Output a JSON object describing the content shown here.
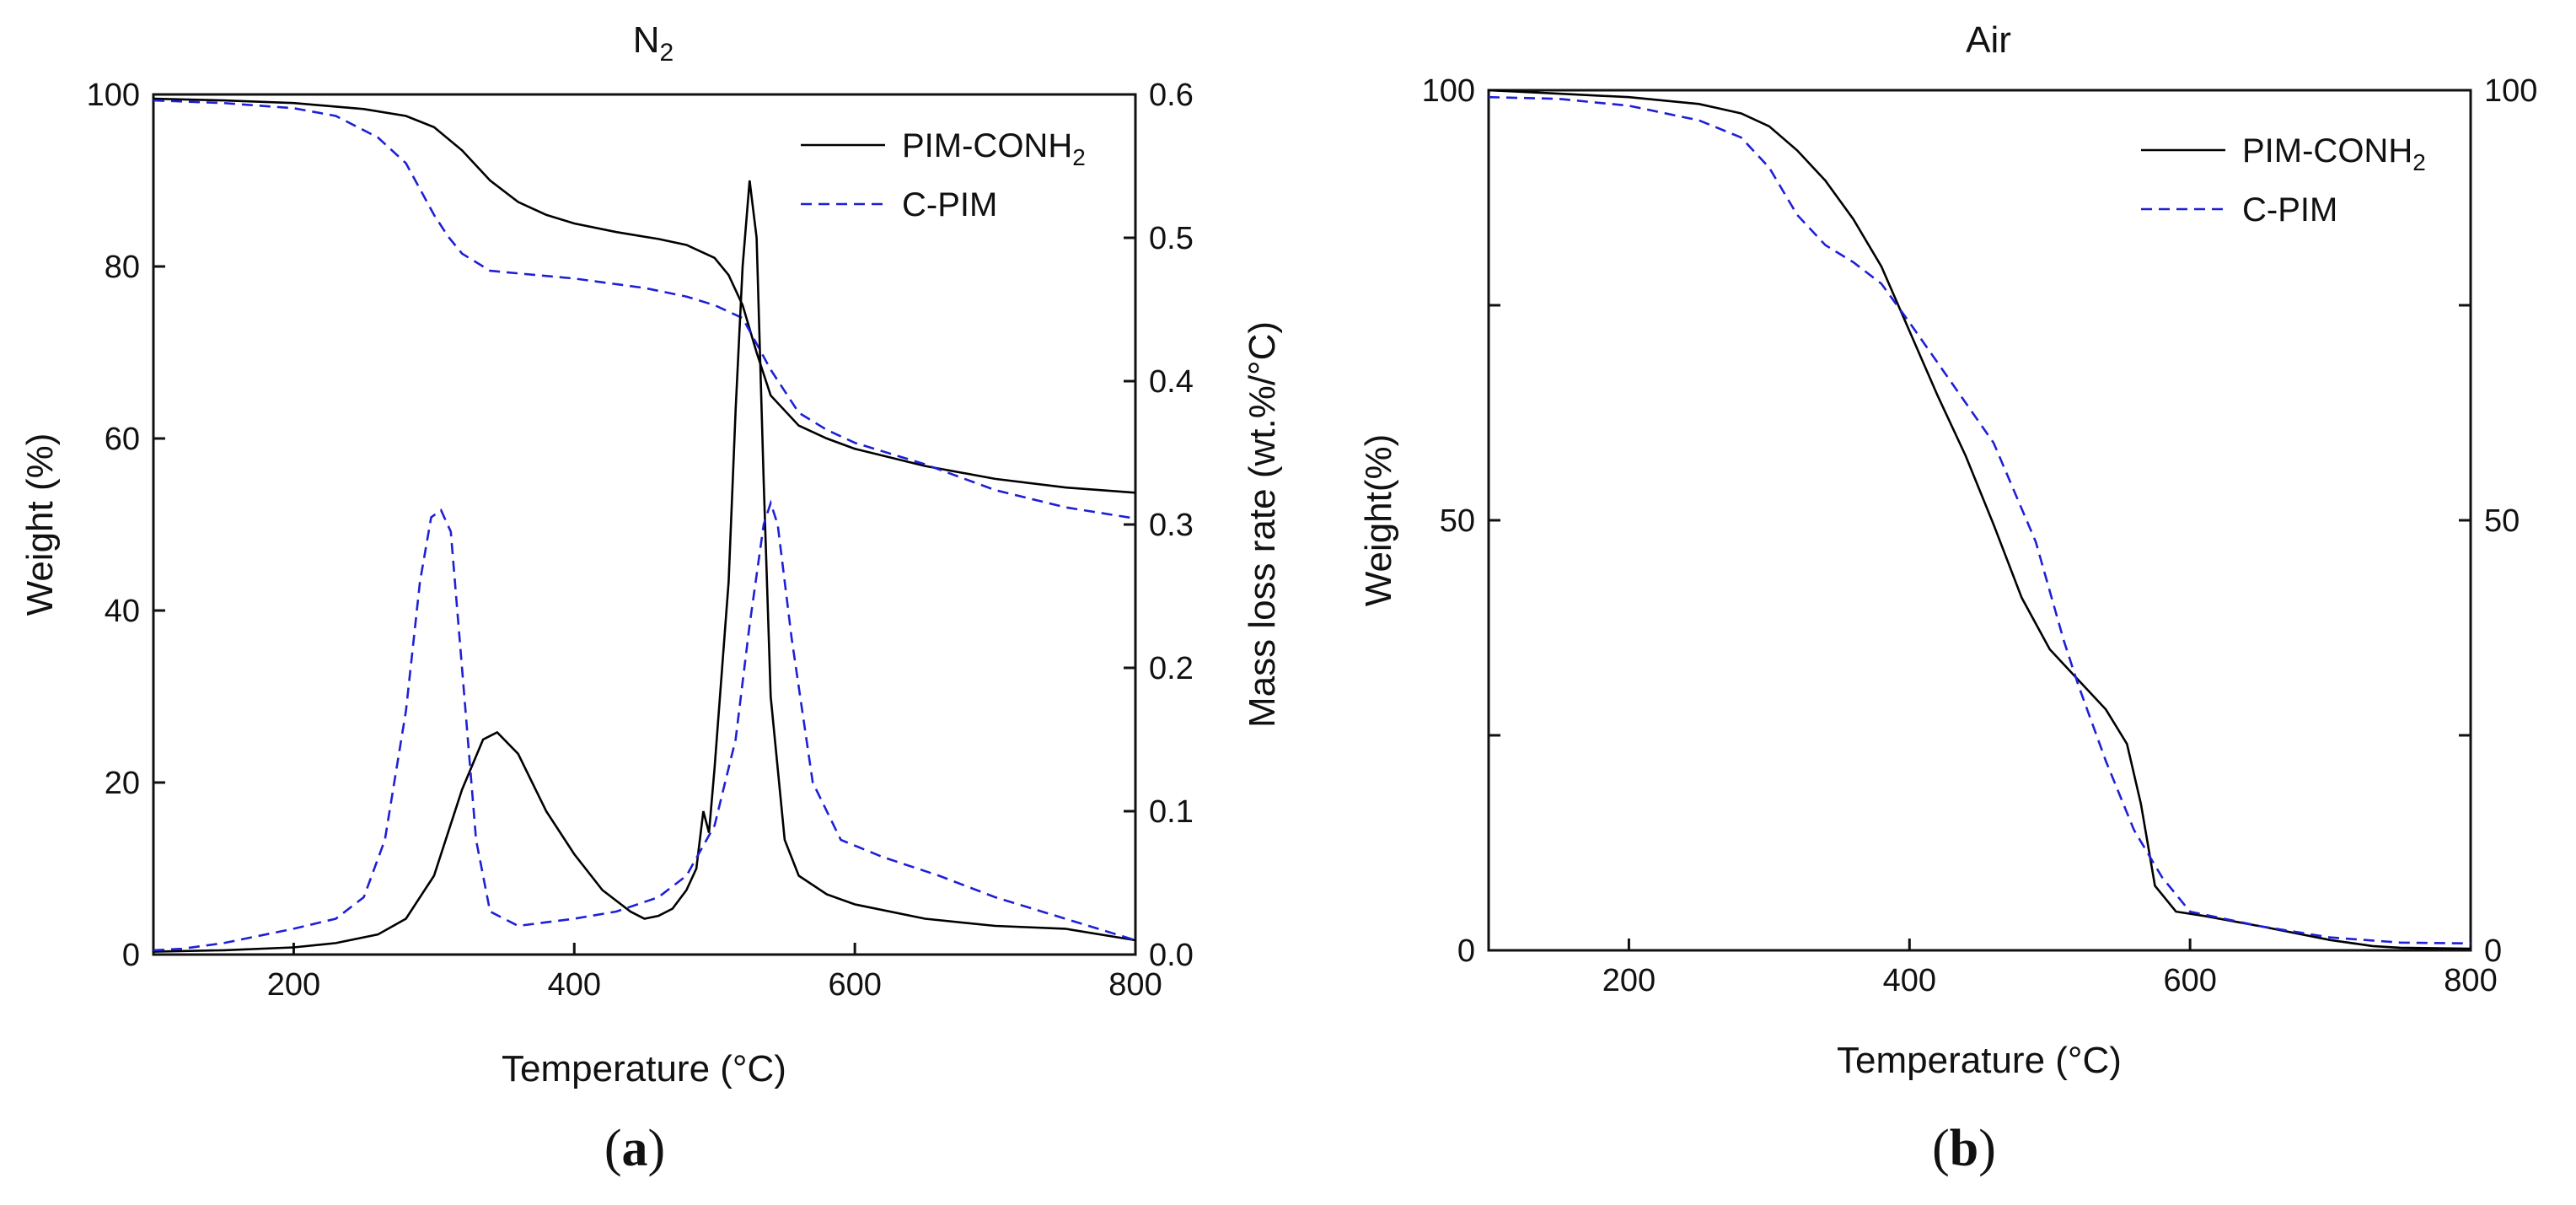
{
  "figure": {
    "caption_a": {
      "open": "(",
      "letter": "a",
      "close": ")"
    },
    "caption_b": {
      "open": "(",
      "letter": "b",
      "close": ")"
    }
  },
  "colors": {
    "pim_conh2": "#000000",
    "c_pim": "#1f1fd6",
    "axis": "#111111"
  },
  "chart_data": [
    {
      "id": "panel-a",
      "type": "line",
      "title": "N",
      "title_subscript": "2",
      "xlabel": "Temperature (°C)",
      "ylabel": "Weight (%)",
      "y2label": "Mass loss rate (wt.%/°C)",
      "xlim": [
        100,
        800
      ],
      "ylim": [
        0,
        100
      ],
      "y2lim": [
        0,
        0.6
      ],
      "xticks": [
        200,
        400,
        600,
        800
      ],
      "yticks": [
        0,
        20,
        40,
        60,
        80,
        100
      ],
      "y2ticks": [
        0.0,
        0.1,
        0.2,
        0.3,
        0.4,
        0.5,
        0.6
      ],
      "y2tick_labels": [
        "0.0",
        "0.1",
        "0.2",
        "0.3",
        "0.4",
        "0.5",
        "0.6"
      ],
      "legend_position": "top-right",
      "legend": [
        {
          "label": "PIM-CONH",
          "subscript": "2",
          "style": "solid",
          "series": "PIM-CONH2"
        },
        {
          "label": "C-PIM",
          "subscript": "",
          "style": "dashed",
          "series": "C-PIM"
        }
      ],
      "series": [
        {
          "name": "PIM-CONH2",
          "kind": "weight",
          "axis": "left",
          "style": "solid",
          "x": [
            100,
            150,
            200,
            250,
            280,
            300,
            320,
            340,
            360,
            380,
            400,
            430,
            460,
            480,
            500,
            510,
            520,
            530,
            540,
            560,
            580,
            600,
            650,
            700,
            750,
            800
          ],
          "y": [
            99.5,
            99.3,
            99.0,
            98.3,
            97.5,
            96.2,
            93.5,
            90.0,
            87.5,
            86.0,
            85.0,
            84.0,
            83.2,
            82.5,
            81.0,
            79.0,
            75.5,
            70.0,
            65.0,
            61.5,
            60.0,
            58.8,
            56.8,
            55.3,
            54.3,
            53.7
          ]
        },
        {
          "name": "C-PIM",
          "kind": "weight",
          "axis": "left",
          "style": "dashed",
          "x": [
            100,
            150,
            200,
            230,
            260,
            280,
            300,
            310,
            320,
            340,
            360,
            400,
            450,
            480,
            500,
            520,
            540,
            560,
            580,
            600,
            650,
            700,
            750,
            800
          ],
          "y": [
            99.3,
            99.0,
            98.4,
            97.5,
            95.0,
            92.0,
            86.0,
            83.5,
            81.5,
            79.5,
            79.2,
            78.6,
            77.5,
            76.5,
            75.5,
            74.0,
            68.0,
            63.0,
            61.0,
            59.5,
            57.0,
            54.0,
            52.0,
            50.7
          ]
        },
        {
          "name": "PIM-CONH2",
          "kind": "rate",
          "axis": "right",
          "style": "solid",
          "x": [
            100,
            150,
            200,
            230,
            260,
            280,
            300,
            320,
            335,
            345,
            360,
            380,
            400,
            420,
            440,
            450,
            460,
            470,
            480,
            487,
            492,
            496,
            500,
            510,
            515,
            520,
            525,
            530,
            535,
            540,
            550,
            560,
            580,
            600,
            650,
            700,
            750,
            800
          ],
          "y": [
            0.002,
            0.003,
            0.005,
            0.008,
            0.014,
            0.025,
            0.055,
            0.115,
            0.15,
            0.155,
            0.14,
            0.1,
            0.07,
            0.045,
            0.03,
            0.025,
            0.027,
            0.032,
            0.045,
            0.06,
            0.1,
            0.085,
            0.13,
            0.26,
            0.38,
            0.48,
            0.54,
            0.5,
            0.33,
            0.18,
            0.08,
            0.055,
            0.042,
            0.035,
            0.025,
            0.02,
            0.018,
            0.01
          ]
        },
        {
          "name": "C-PIM",
          "kind": "rate",
          "axis": "right",
          "style": "dashed",
          "x": [
            100,
            120,
            150,
            200,
            230,
            250,
            265,
            280,
            290,
            298,
            305,
            312,
            320,
            330,
            340,
            360,
            400,
            430,
            460,
            480,
            500,
            515,
            525,
            535,
            540,
            545,
            555,
            570,
            590,
            620,
            660,
            700,
            750,
            800
          ],
          "y": [
            0.003,
            0.004,
            0.008,
            0.018,
            0.025,
            0.04,
            0.08,
            0.17,
            0.26,
            0.305,
            0.31,
            0.295,
            0.2,
            0.08,
            0.03,
            0.02,
            0.025,
            0.03,
            0.04,
            0.055,
            0.09,
            0.15,
            0.23,
            0.3,
            0.315,
            0.3,
            0.22,
            0.12,
            0.08,
            0.068,
            0.055,
            0.04,
            0.025,
            0.01
          ]
        }
      ]
    },
    {
      "id": "panel-b",
      "type": "line",
      "title": "Air",
      "xlabel": "Temperature (°C)",
      "ylabel": "Weight(%)",
      "xlim": [
        100,
        800
      ],
      "ylim": [
        0,
        100
      ],
      "xticks": [
        200,
        400,
        600,
        800
      ],
      "yticks": [
        0,
        50,
        100
      ],
      "y_minor_ticks": [
        25,
        75
      ],
      "y2ticks": [
        0,
        50,
        100
      ],
      "legend_position": "top-right",
      "legend": [
        {
          "label": "PIM-CONH",
          "subscript": "2",
          "style": "solid",
          "series": "PIM-CONH2"
        },
        {
          "label": "C-PIM",
          "subscript": "",
          "style": "dashed",
          "series": "C-PIM"
        }
      ],
      "series": [
        {
          "name": "PIM-CONH2",
          "kind": "weight",
          "axis": "left",
          "style": "solid",
          "x": [
            100,
            150,
            200,
            250,
            280,
            300,
            320,
            340,
            360,
            380,
            400,
            420,
            440,
            460,
            480,
            500,
            520,
            540,
            555,
            565,
            575,
            590,
            610,
            650,
            700,
            730,
            750,
            800
          ],
          "y": [
            100,
            99.6,
            99.2,
            98.4,
            97.3,
            95.8,
            93.0,
            89.5,
            85.0,
            79.5,
            72.0,
            64.5,
            57.5,
            49.5,
            41.0,
            35.0,
            31.5,
            28.0,
            24.0,
            17.0,
            7.5,
            4.5,
            4.0,
            2.8,
            1.2,
            0.5,
            0.3,
            0.2
          ]
        },
        {
          "name": "C-PIM",
          "kind": "weight",
          "axis": "left",
          "style": "dashed",
          "x": [
            100,
            150,
            200,
            250,
            280,
            300,
            320,
            340,
            360,
            380,
            400,
            430,
            460,
            490,
            510,
            520,
            540,
            560,
            580,
            600,
            650,
            700,
            750,
            800
          ],
          "y": [
            99.2,
            99.0,
            98.2,
            96.5,
            94.5,
            91.0,
            85.5,
            82.0,
            80.0,
            77.5,
            73.0,
            66.0,
            59.0,
            47.5,
            36.0,
            31.0,
            22.0,
            14.0,
            8.5,
            4.5,
            2.8,
            1.5,
            0.9,
            0.8
          ]
        }
      ]
    }
  ]
}
